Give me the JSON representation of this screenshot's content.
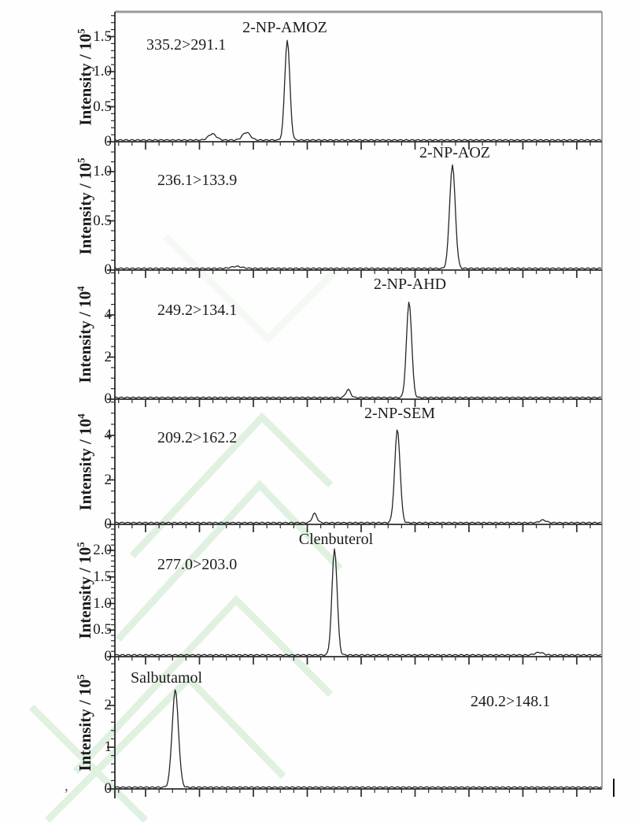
{
  "figure": {
    "kind": "stacked MRM chromatograms",
    "panel_count": 6,
    "trace_color": "#262626",
    "watermark_color": "#d9eeda",
    "background": "#fefefe"
  },
  "artifacts": {
    "stray_comma": ",",
    "cursor_bar": "text-cursor"
  },
  "chart_data": {
    "type": "line",
    "subtype": "chromatogram-stack",
    "grid": false,
    "x_axis": {
      "label": "",
      "tick_labels_visible": false
    },
    "ylabel_prefix": "Intensity / 10",
    "panels": [
      {
        "compound": "2-NP-AMOZ",
        "transition": "335.2>291.1",
        "y_exponent": "5",
        "y_tick_labels": [
          "0",
          "0.5",
          "1.0",
          "1.5"
        ],
        "y_tick_values": [
          0,
          0.5,
          1.0,
          1.5
        ],
        "ylim": [
          0,
          1.85
        ],
        "main_peak_intensity": "1.4e5",
        "peaks": [
          {
            "pos": 0.354,
            "height": 1.43,
            "sigma": 3.2
          },
          {
            "pos": 0.2,
            "height": 0.09,
            "sigma": 5.0
          },
          {
            "pos": 0.27,
            "height": 0.11,
            "sigma": 5.0
          }
        ]
      },
      {
        "compound": "2-NP-AOZ",
        "transition": "236.1>133.9",
        "y_exponent": "5",
        "y_tick_labels": [
          "0",
          "0.5",
          "1.0"
        ],
        "y_tick_values": [
          0,
          0.5,
          1.0
        ],
        "ylim": [
          0,
          1.3
        ],
        "main_peak_intensity": "1.05e5",
        "peaks": [
          {
            "pos": 0.693,
            "height": 1.05,
            "sigma": 3.6
          },
          {
            "pos": 0.25,
            "height": 0.02,
            "sigma": 7.0
          }
        ]
      },
      {
        "compound": "2-NP-AHD",
        "transition": "249.2>134.1",
        "y_exponent": "4",
        "y_tick_labels": [
          "0",
          "2",
          "4"
        ],
        "y_tick_values": [
          0,
          2,
          4
        ],
        "ylim": [
          0,
          6.1
        ],
        "main_peak_intensity": "4.5e4",
        "peaks": [
          {
            "pos": 0.604,
            "height": 4.55,
            "sigma": 3.3
          },
          {
            "pos": 0.479,
            "height": 0.38,
            "sigma": 3.0
          }
        ]
      },
      {
        "compound": "2-NP-SEM",
        "transition": "209.2>162.2",
        "y_exponent": "4",
        "y_tick_labels": [
          "0",
          "2",
          "4"
        ],
        "y_tick_values": [
          0,
          2,
          4
        ],
        "ylim": [
          0,
          5.6
        ],
        "main_peak_intensity": "4.2e4",
        "peaks": [
          {
            "pos": 0.58,
            "height": 4.2,
            "sigma": 3.4
          },
          {
            "pos": 0.41,
            "height": 0.42,
            "sigma": 3.0
          },
          {
            "pos": 0.879,
            "height": 0.12,
            "sigma": 4.0
          }
        ]
      },
      {
        "compound": "Clenbuterol",
        "transition": "277.0>203.0",
        "y_exponent": "5",
        "y_tick_labels": [
          "0",
          "0.5",
          "1.0",
          "1.5",
          "2.0"
        ],
        "y_tick_values": [
          0,
          0.5,
          1.0,
          1.5,
          2.0
        ],
        "ylim": [
          0,
          2.49
        ],
        "main_peak_intensity": "2.0e5",
        "peaks": [
          {
            "pos": 0.451,
            "height": 2.0,
            "sigma": 3.3
          },
          {
            "pos": 0.871,
            "height": 0.05,
            "sigma": 5.0
          }
        ]
      },
      {
        "compound": "Salbutamol",
        "transition": "240.2>148.1",
        "y_exponent": "5",
        "y_tick_labels": [
          "0",
          "1",
          "2"
        ],
        "y_tick_values": [
          0,
          1,
          2
        ],
        "ylim": [
          0,
          3.17
        ],
        "main_peak_intensity": "2.3e5",
        "peaks": [
          {
            "pos": 0.124,
            "height": 2.33,
            "sigma": 4.0
          }
        ]
      }
    ]
  }
}
